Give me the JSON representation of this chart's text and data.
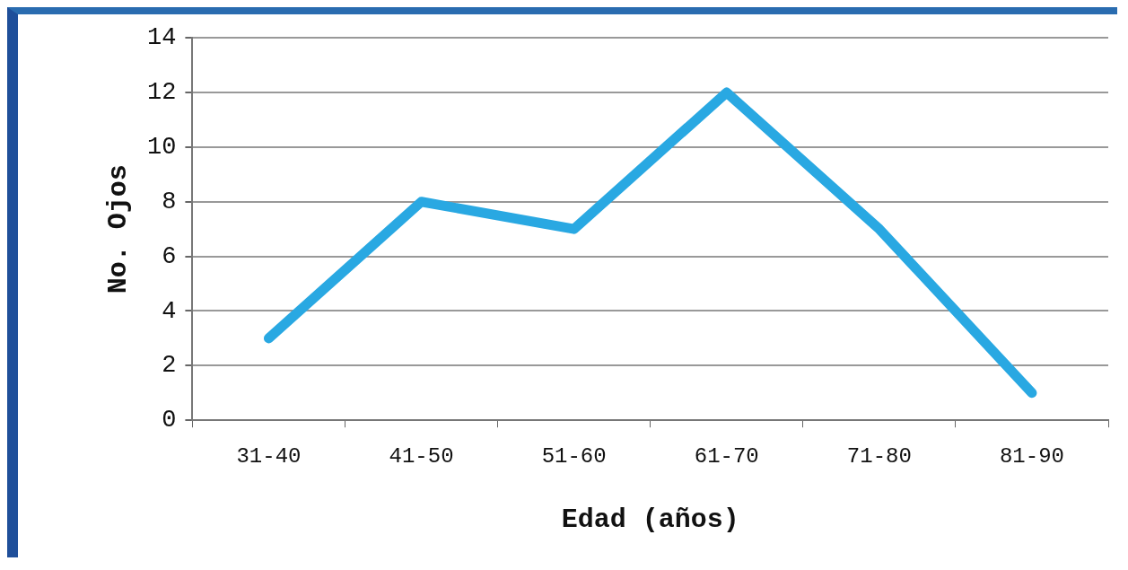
{
  "chart_data": {
    "type": "line",
    "xlabel": "Edad (años)",
    "ylabel": "No. Ojos",
    "categories": [
      "31-40",
      "41-50",
      "51-60",
      "61-70",
      "71-80",
      "81-90"
    ],
    "series": [
      {
        "color": "#29a8e2",
        "values": [
          3,
          8,
          7,
          12,
          7,
          1
        ]
      }
    ],
    "ylim": [
      0,
      14
    ],
    "yticks": [
      0,
      2,
      4,
      6,
      8,
      10,
      12,
      14
    ],
    "grid": "y",
    "legend": false,
    "marker": "none",
    "line_style": "solid"
  }
}
